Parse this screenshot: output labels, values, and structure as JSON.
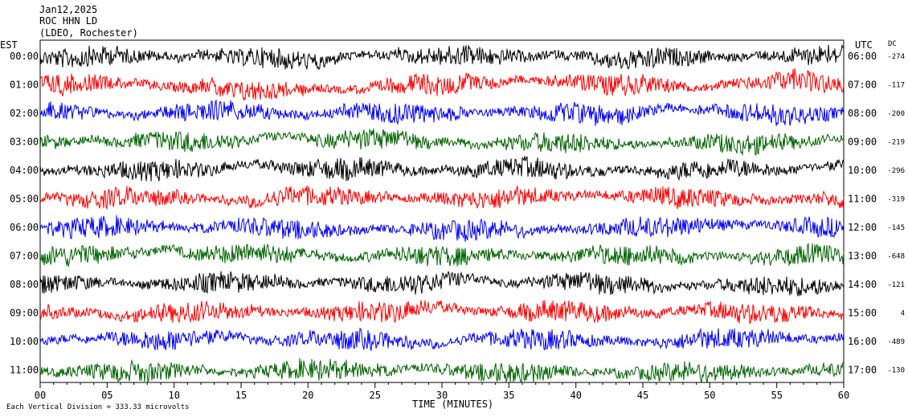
{
  "header": {
    "date": "Jan12,2025",
    "station": "ROC HHN LD",
    "network": "(LDEO, Rochester)"
  },
  "left_axis_label": "EST",
  "right_axis_label": "UTC",
  "dc_label": "DC",
  "x_axis_title": "TIME (MINUTES)",
  "footer_note": "Each Vertical Division = 333.33 microvolts",
  "colors": {
    "black": "#000000",
    "red": "#ff0000",
    "blue": "#0000ff",
    "green": "#006400",
    "text": "#000000",
    "background": "#ffffff"
  },
  "chart_data": {
    "type": "line",
    "xlabel": "TIME (MINUTES)",
    "xlim": [
      0,
      60
    ],
    "x_ticks": [
      "00",
      "05",
      "10",
      "15",
      "20",
      "25",
      "30",
      "35",
      "40",
      "45",
      "50",
      "55",
      "60"
    ],
    "color_cycle": [
      "black",
      "red",
      "blue",
      "green"
    ],
    "rows": [
      {
        "est": "00:00",
        "utc": "06:00",
        "dc": "-274"
      },
      {
        "est": "01:00",
        "utc": "07:00",
        "dc": "-117"
      },
      {
        "est": "02:00",
        "utc": "08:00",
        "dc": "-200"
      },
      {
        "est": "03:00",
        "utc": "09:00",
        "dc": "-219"
      },
      {
        "est": "04:00",
        "utc": "10:00",
        "dc": "-296"
      },
      {
        "est": "05:00",
        "utc": "11:00",
        "dc": "-319"
      },
      {
        "est": "06:00",
        "utc": "12:00",
        "dc": "-145"
      },
      {
        "est": "07:00",
        "utc": "13:00",
        "dc": "-648"
      },
      {
        "est": "08:00",
        "utc": "14:00",
        "dc": "-121"
      },
      {
        "est": "09:00",
        "utc": "15:00",
        "dc": "4"
      },
      {
        "est": "10:00",
        "utc": "16:00",
        "dc": "-489"
      },
      {
        "est": "11:00",
        "utc": "17:00",
        "dc": "-130"
      }
    ]
  }
}
